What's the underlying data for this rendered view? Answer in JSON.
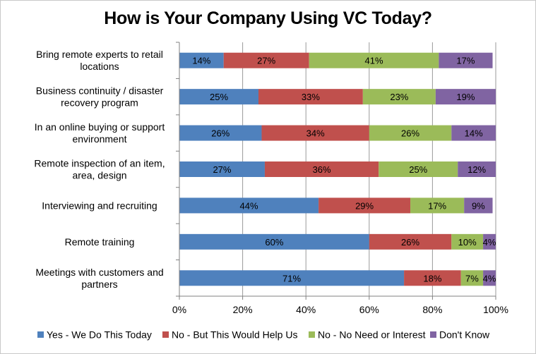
{
  "chart_data": {
    "type": "bar",
    "orientation": "horizontal",
    "stacked": true,
    "title": "How is Your Company Using VC Today?",
    "categories": [
      [
        "Bring remote experts to retail",
        "locations"
      ],
      [
        "Business continuity / disaster",
        "recovery program"
      ],
      [
        "In an online buying or support",
        "environment"
      ],
      [
        "Remote inspection of an item,",
        "area, design"
      ],
      [
        "Interviewing and recruiting"
      ],
      [
        "Remote training"
      ],
      [
        "Meetings with customers and",
        "partners"
      ]
    ],
    "series": [
      {
        "name": "Yes - We Do This Today",
        "color": "#4f81bd",
        "values": [
          14,
          25,
          26,
          27,
          44,
          60,
          71
        ]
      },
      {
        "name": "No - But This Would Help Us",
        "color": "#c0504d",
        "values": [
          27,
          33,
          34,
          36,
          29,
          26,
          18
        ]
      },
      {
        "name": "No - No Need or Interest",
        "color": "#9bbb59",
        "values": [
          41,
          23,
          26,
          25,
          17,
          10,
          7
        ]
      },
      {
        "name": "Don't Know",
        "color": "#8064a2",
        "values": [
          17,
          19,
          14,
          12,
          9,
          4,
          4
        ]
      }
    ],
    "xlim": [
      0,
      100
    ],
    "xticks": [
      "0%",
      "20%",
      "40%",
      "60%",
      "80%",
      "100%"
    ],
    "value_suffix": "%",
    "grid": true,
    "legend": "bottom"
  }
}
